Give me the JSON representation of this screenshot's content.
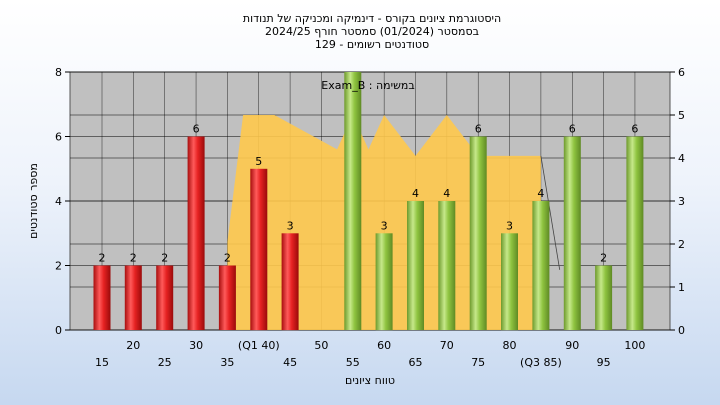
{
  "chart_data": {
    "type": "bar",
    "title_lines": [
      "היסטוגרמת ציונים בקורס - דינמיקה ומכניקה של תנודות",
      "בסמסטר  (01/2024)  סמסטר חורף  2024/25",
      "סטודנטים רשומים - 129"
    ],
    "xlabel": "טווח ציונים",
    "ylabel": "מספר סטודנטים",
    "ylim": [
      0,
      8
    ],
    "y_ticks": [
      0,
      2,
      4,
      6,
      8
    ],
    "y2lim": [
      0,
      6
    ],
    "y2_ticks": [
      0,
      1,
      2,
      3,
      4,
      5,
      6
    ],
    "grid": true,
    "x_tick_labels_lower": [
      "15",
      "25",
      "35",
      "45",
      "55",
      "65",
      "75",
      "(Q3 85)",
      "95"
    ],
    "x_tick_labels_upper": [
      "20",
      "30",
      "(Q1 40)",
      "50",
      "60",
      "70",
      "80",
      "90",
      "100"
    ],
    "bars": [
      {
        "x": 15,
        "value": 2,
        "label": "2",
        "color": "red"
      },
      {
        "x": 20,
        "value": 2,
        "label": "2",
        "color": "red"
      },
      {
        "x": 25,
        "value": 2,
        "label": "2",
        "color": "red"
      },
      {
        "x": 30,
        "value": 6,
        "label": "6",
        "color": "red"
      },
      {
        "x": 35,
        "value": 2,
        "label": "2",
        "color": "red"
      },
      {
        "x": 40,
        "value": 5,
        "label": "5",
        "color": "red"
      },
      {
        "x": 45,
        "value": 3,
        "label": "3",
        "color": "red"
      },
      {
        "x": 55,
        "value": 8,
        "label": "",
        "color": "green"
      },
      {
        "x": 60,
        "value": 3,
        "label": "3",
        "color": "green"
      },
      {
        "x": 65,
        "value": 4,
        "label": "4",
        "color": "green"
      },
      {
        "x": 70,
        "value": 4,
        "label": "4",
        "color": "green"
      },
      {
        "x": 75,
        "value": 6,
        "label": "6",
        "color": "green"
      },
      {
        "x": 80,
        "value": 3,
        "label": "3",
        "color": "green"
      },
      {
        "x": 85,
        "value": 4,
        "label": "4",
        "color": "green"
      },
      {
        "x": 90,
        "value": 6,
        "label": "6",
        "color": "green"
      },
      {
        "x": 95,
        "value": 2,
        "label": "2",
        "color": "green"
      },
      {
        "x": 100,
        "value": 6,
        "label": "6",
        "color": "green"
      }
    ],
    "area_series": {
      "points": [
        [
          35,
          2.05
        ],
        [
          37.5,
          5.0
        ],
        [
          42.5,
          5.0
        ],
        [
          52.5,
          4.2
        ],
        [
          55,
          5.0
        ],
        [
          57.5,
          4.2
        ],
        [
          60,
          5.0
        ],
        [
          65,
          4.05
        ],
        [
          70,
          5.0
        ],
        [
          75,
          4.05
        ],
        [
          85,
          4.05
        ]
      ],
      "color": "#ffc94d"
    },
    "annotation": "במשימה : Exam_B",
    "colors": {
      "red": "#e02020",
      "green": "#8cc63f",
      "plot_bg": "#c0c0c0",
      "area": "#ffc94d"
    }
  }
}
